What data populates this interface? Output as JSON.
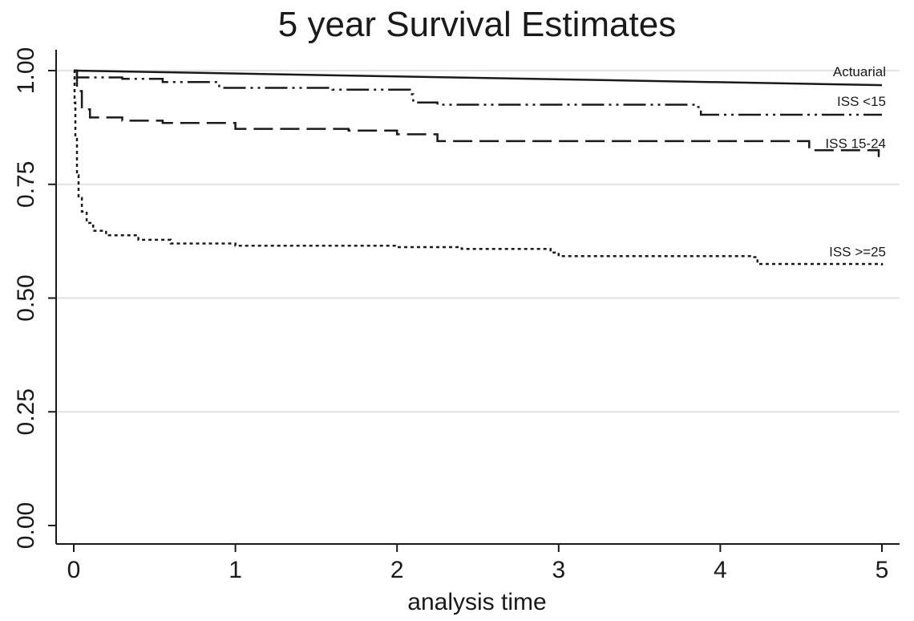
{
  "chart_data": {
    "type": "line",
    "title": "5 year Survival Estimates",
    "xlabel": "analysis time",
    "ylabel": "",
    "xlim": [
      0,
      5
    ],
    "ylim": [
      0,
      1
    ],
    "xticks": [
      "0",
      "1",
      "2",
      "3",
      "4",
      "5"
    ],
    "yticks": [
      "0.00",
      "0.25",
      "0.50",
      "0.75",
      "1.00"
    ],
    "grid": "horizontal",
    "legend": "none",
    "series": [
      {
        "name": "Actuarial",
        "style": "solid",
        "points": [
          [
            0,
            1.0
          ],
          [
            5,
            0.968
          ]
        ]
      },
      {
        "name": "ISS <15",
        "style": "dash-dot-dot",
        "points": [
          [
            0,
            1.0
          ],
          [
            0.02,
            0.985
          ],
          [
            0.3,
            0.982
          ],
          [
            0.55,
            0.975
          ],
          [
            0.9,
            0.962
          ],
          [
            1.6,
            0.958
          ],
          [
            2.08,
            0.948
          ],
          [
            2.1,
            0.93
          ],
          [
            2.25,
            0.925
          ],
          [
            3.85,
            0.92
          ],
          [
            3.88,
            0.903
          ],
          [
            5,
            0.903
          ]
        ]
      },
      {
        "name": "ISS 15-24",
        "style": "dashed",
        "points": [
          [
            0,
            1.0
          ],
          [
            0.02,
            0.955
          ],
          [
            0.05,
            0.915
          ],
          [
            0.1,
            0.897
          ],
          [
            0.3,
            0.89
          ],
          [
            0.55,
            0.885
          ],
          [
            1.0,
            0.872
          ],
          [
            1.7,
            0.868
          ],
          [
            2.0,
            0.86
          ],
          [
            2.25,
            0.845
          ],
          [
            4.5,
            0.845
          ],
          [
            4.55,
            0.825
          ],
          [
            4.97,
            0.825
          ],
          [
            4.98,
            0.81
          ]
        ]
      },
      {
        "name": "ISS >=25",
        "style": "dotted",
        "points": [
          [
            0,
            1.0
          ],
          [
            0.005,
            0.93
          ],
          [
            0.01,
            0.85
          ],
          [
            0.02,
            0.77
          ],
          [
            0.03,
            0.72
          ],
          [
            0.05,
            0.69
          ],
          [
            0.08,
            0.665
          ],
          [
            0.12,
            0.648
          ],
          [
            0.2,
            0.638
          ],
          [
            0.4,
            0.628
          ],
          [
            0.6,
            0.62
          ],
          [
            1.0,
            0.615
          ],
          [
            2.0,
            0.612
          ],
          [
            2.4,
            0.608
          ],
          [
            2.95,
            0.6
          ],
          [
            3.0,
            0.592
          ],
          [
            4.2,
            0.59
          ],
          [
            4.23,
            0.575
          ],
          [
            5.0,
            0.572
          ]
        ]
      }
    ],
    "line_labels": [
      {
        "text": "Actuarial",
        "series": "Actuarial"
      },
      {
        "text": "ISS <15",
        "series": "ISS <15"
      },
      {
        "text": "ISS 15-24",
        "series": "ISS 15-24"
      },
      {
        "text": "ISS >=25",
        "series": "ISS >=25"
      }
    ],
    "colors": {
      "line": "#1a1a1a",
      "grid": "#e2e2e2",
      "axis": "#1a1a1a"
    }
  }
}
